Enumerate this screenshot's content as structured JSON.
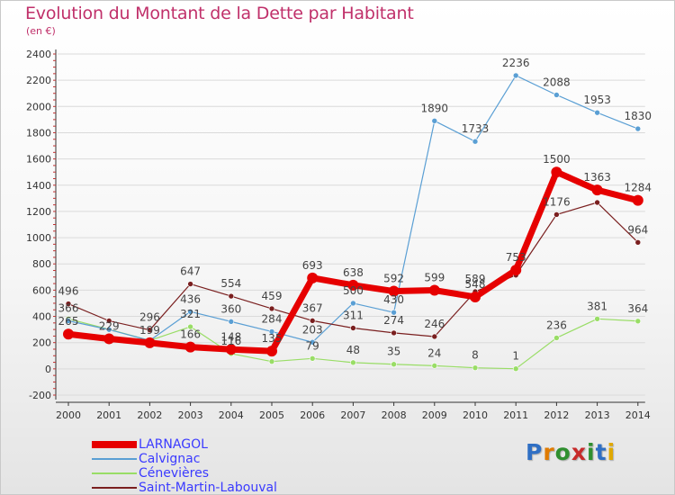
{
  "title": "Evolution du Montant de la Dette par Habitant",
  "subtitle": "(en €)",
  "brand": "Proxiti",
  "chart_data": {
    "type": "line",
    "title": "Evolution du Montant de la Dette par Habitant",
    "subtitle": "(en €)",
    "xlabel": "",
    "ylabel": "",
    "x": [
      "2000",
      "2001",
      "2002",
      "2003",
      "2004",
      "2005",
      "2006",
      "2007",
      "2008",
      "2009",
      "2010",
      "2011",
      "2012",
      "2013",
      "2014"
    ],
    "ylim": [
      -200,
      2400
    ],
    "yticks": [
      "-200",
      "0",
      "200",
      "400",
      "600",
      "800",
      "1000",
      "1200",
      "1400",
      "1600",
      "1800",
      "2000",
      "2200",
      "2400"
    ],
    "legend_position": "bottom-left",
    "series": [
      {
        "name": "LARNAGOL",
        "color": "#e60000",
        "values": [
          265,
          229,
          199,
          166,
          148,
          135,
          693,
          638,
          592,
          599,
          548,
          753,
          1500,
          1363,
          1284
        ],
        "labels": [
          "265",
          "229",
          "199",
          "166",
          "148",
          "135",
          "693",
          "638",
          "592",
          "599",
          "548",
          "753",
          "1500",
          "1363",
          "1284"
        ]
      },
      {
        "name": "Calvignac",
        "color": "#5a9fd4",
        "values": [
          366,
          299,
          216,
          436,
          360,
          284,
          203,
          500,
          430,
          1890,
          1733,
          2236,
          2088,
          1953,
          1830
        ],
        "labels": [
          "366",
          "",
          "",
          "436",
          "360",
          "284",
          "203",
          "500",
          "430",
          "1890",
          "1733",
          "2236",
          "2088",
          "1953",
          "1830"
        ]
      },
      {
        "name": "Cénevières",
        "color": "#99dd66",
        "values": [
          381,
          301,
          216,
          321,
          116,
          56,
          79,
          48,
          35,
          24,
          8,
          1,
          236,
          381,
          364
        ],
        "labels": [
          "",
          "",
          "",
          "321",
          "116",
          "",
          "79",
          "48",
          "35",
          "24",
          "8",
          "1",
          "236",
          "381",
          "364"
        ]
      },
      {
        "name": "Saint-Martin-Labouval",
        "color": "#7a1f1f",
        "values": [
          496,
          366,
          296,
          647,
          554,
          459,
          367,
          311,
          274,
          246,
          589,
          714,
          1176,
          1268,
          964
        ],
        "labels": [
          "496",
          "",
          "296",
          "647",
          "554",
          "459",
          "367",
          "311",
          "274",
          "246",
          "589",
          "",
          "1176",
          "",
          "964"
        ]
      }
    ]
  }
}
